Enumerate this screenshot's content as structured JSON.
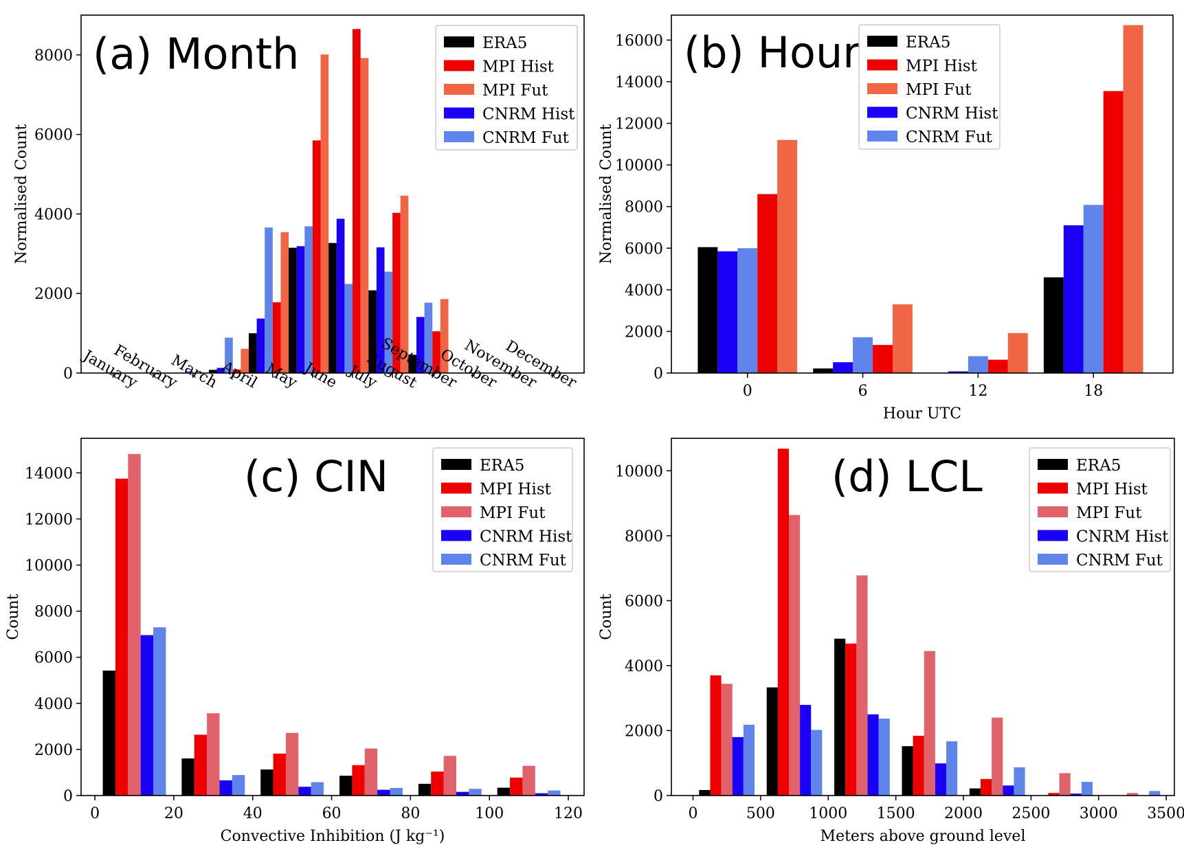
{
  "chart_data": [
    {
      "type": "bar",
      "title": "(a) Month",
      "xlabel": "",
      "ylabel": "Normalised Count",
      "ylim": [
        0,
        9000
      ],
      "yticks": [
        0,
        2000,
        4000,
        6000,
        8000
      ],
      "categories": [
        "January",
        "February",
        "March",
        "April",
        "May",
        "June",
        "July",
        "August",
        "September",
        "October",
        "November",
        "December"
      ],
      "legend_loc": "upper-right",
      "series": [
        {
          "name": "ERA5",
          "color": "#000000",
          "values": [
            0,
            0,
            0,
            80,
            1000,
            3150,
            3270,
            2080,
            460,
            0,
            0,
            0
          ]
        },
        {
          "name": "CNRM Hist",
          "color": "#1a00f5",
          "values": [
            0,
            0,
            0,
            130,
            1370,
            3190,
            3880,
            3160,
            1410,
            0,
            0,
            0
          ]
        },
        {
          "name": "CNRM Fut",
          "color": "#5f85ea",
          "values": [
            0,
            0,
            50,
            890,
            3660,
            3690,
            2240,
            2550,
            1770,
            0,
            0,
            0
          ]
        },
        {
          "name": "MPI Hist",
          "color": "#ee0000",
          "values": [
            0,
            0,
            0,
            90,
            1780,
            5850,
            8650,
            4030,
            1050,
            0,
            0,
            0
          ]
        },
        {
          "name": "MPI Fut",
          "color": "#f06543",
          "values": [
            0,
            0,
            0,
            610,
            3540,
            8010,
            7920,
            4460,
            1860,
            0,
            0,
            0
          ]
        }
      ],
      "legend": [
        "ERA5",
        "MPI Hist",
        "MPI Fut",
        "CNRM Hist",
        "CNRM Fut"
      ]
    },
    {
      "type": "bar",
      "title": "(b) Hour",
      "xlabel": "Hour UTC",
      "ylabel": "Normalised Count",
      "ylim": [
        0,
        17200
      ],
      "yticks": [
        0,
        2000,
        4000,
        6000,
        8000,
        10000,
        12000,
        14000,
        16000
      ],
      "categories": [
        "0",
        "6",
        "12",
        "18"
      ],
      "legend_loc": "upper-center",
      "series": [
        {
          "name": "ERA5",
          "color": "#000000",
          "values": [
            6050,
            220,
            0,
            4600
          ]
        },
        {
          "name": "CNRM Hist",
          "color": "#1a00f5",
          "values": [
            5850,
            520,
            80,
            7100
          ]
        },
        {
          "name": "CNRM Fut",
          "color": "#5f85ea",
          "values": [
            6000,
            1720,
            810,
            8080
          ]
        },
        {
          "name": "MPI Hist",
          "color": "#ee0000",
          "values": [
            8600,
            1350,
            640,
            13550
          ]
        },
        {
          "name": "MPI Fut",
          "color": "#f06543",
          "values": [
            11200,
            3300,
            1920,
            16720
          ]
        }
      ],
      "legend": [
        "ERA5",
        "MPI Hist",
        "MPI Fut",
        "CNRM Hist",
        "CNRM Fut"
      ]
    },
    {
      "type": "bar",
      "title": "(c) CIN",
      "xlabel": "Convective Inhibition (J kg⁻¹)",
      "ylabel": "Count",
      "xlim": [
        -3.5,
        124
      ],
      "xticks": [
        0,
        20,
        40,
        60,
        80,
        100,
        120
      ],
      "ylim": [
        0,
        15500
      ],
      "yticks": [
        0,
        2000,
        4000,
        6000,
        8000,
        10000,
        12000,
        14000
      ],
      "bin_centers": [
        10,
        30,
        50,
        70,
        90,
        110
      ],
      "bin_width_units": 3.2,
      "bar_order": [
        "ERA5",
        "MPI Hist",
        "MPI Fut",
        "CNRM Hist",
        "CNRM Fut"
      ],
      "legend_loc": "upper-right",
      "series": [
        {
          "name": "ERA5",
          "color": "#000000",
          "values": [
            5420,
            1610,
            1130,
            860,
            510,
            340
          ]
        },
        {
          "name": "MPI Hist",
          "color": "#ee0000",
          "values": [
            13750,
            2640,
            1820,
            1320,
            1040,
            780
          ]
        },
        {
          "name": "MPI Fut",
          "color": "#e0636b",
          "values": [
            14820,
            3570,
            2720,
            2040,
            1720,
            1290
          ]
        },
        {
          "name": "CNRM Hist",
          "color": "#1a00f5",
          "values": [
            6960,
            660,
            380,
            250,
            160,
            100
          ]
        },
        {
          "name": "CNRM Fut",
          "color": "#5f85ea",
          "values": [
            7300,
            890,
            580,
            330,
            290,
            220
          ]
        }
      ],
      "legend": [
        "ERA5",
        "MPI Hist",
        "MPI Fut",
        "CNRM Hist",
        "CNRM Fut"
      ]
    },
    {
      "type": "bar",
      "title": "(d) LCL",
      "xlabel": "Meters above ground level",
      "ylabel": "Count",
      "xlim": [
        -160,
        3560
      ],
      "xticks": [
        0,
        500,
        1000,
        1500,
        2000,
        2500,
        3000,
        3500
      ],
      "ylim": [
        0,
        11000
      ],
      "yticks": [
        0,
        2000,
        4000,
        6000,
        8000,
        10000
      ],
      "bin_centers": [
        250,
        750,
        1250,
        1750,
        2250,
        2750,
        3250
      ],
      "bin_width_units": 82,
      "bar_order": [
        "ERA5",
        "MPI Hist",
        "MPI Fut",
        "CNRM Hist",
        "CNRM Fut"
      ],
      "legend_loc": "upper-right",
      "series": [
        {
          "name": "ERA5",
          "color": "#000000",
          "values": [
            170,
            3330,
            4830,
            1520,
            220,
            0,
            0
          ]
        },
        {
          "name": "MPI Hist",
          "color": "#ee0000",
          "values": [
            3700,
            10680,
            4680,
            1840,
            510,
            80,
            0
          ]
        },
        {
          "name": "MPI Fut",
          "color": "#e0636b",
          "values": [
            3440,
            8640,
            6780,
            4450,
            2400,
            690,
            80
          ]
        },
        {
          "name": "CNRM Hist",
          "color": "#1a00f5",
          "values": [
            1800,
            2790,
            2500,
            990,
            310,
            60,
            0
          ]
        },
        {
          "name": "CNRM Fut",
          "color": "#5f85ea",
          "values": [
            2180,
            2020,
            2370,
            1670,
            870,
            420,
            140
          ]
        }
      ],
      "legend": [
        "ERA5",
        "MPI Hist",
        "MPI Fut",
        "CNRM Hist",
        "CNRM Fut"
      ]
    }
  ]
}
